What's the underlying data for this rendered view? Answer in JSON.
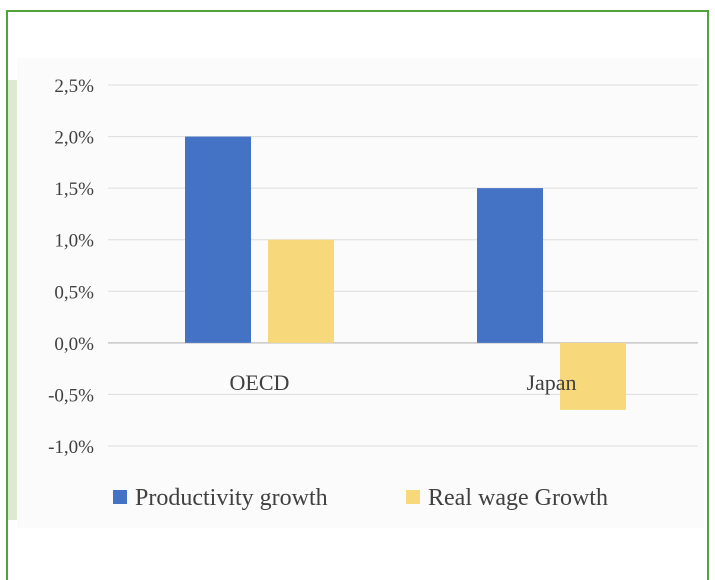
{
  "chart_data": {
    "type": "bar",
    "categories": [
      "OECD",
      "Japan"
    ],
    "series": [
      {
        "name": "Productivity growth",
        "color": "#4472c4",
        "values": [
          2.0,
          1.5
        ]
      },
      {
        "name": "Real wage Growth",
        "color": "#f7d87a",
        "values": [
          1.0,
          -0.65
        ]
      }
    ],
    "ylim": [
      -1.0,
      2.5
    ],
    "yticks": [
      2.5,
      2.0,
      1.5,
      1.0,
      0.5,
      0.0,
      -0.5,
      -1.0
    ],
    "ytick_labels": [
      "2,5%",
      "2,0%",
      "1,5%",
      "1,0%",
      "0,5%",
      "0,0%",
      "-0,5%",
      "-1,0%"
    ],
    "grid": true,
    "legend": "bottom"
  }
}
